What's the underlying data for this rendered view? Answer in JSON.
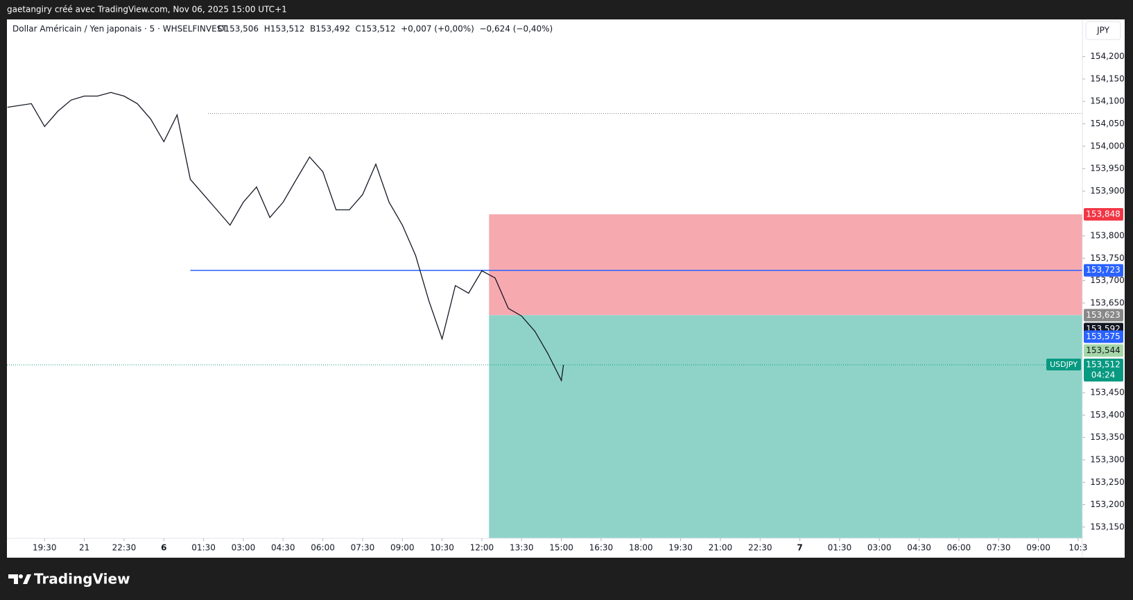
{
  "credit": "gaetangiry créé avec TradingView.com, Nov 06, 2025 15:00 UTC+1",
  "brand": "TradingView",
  "chart_data": {
    "type": "line",
    "title": "Dollar Américain / Yen japonais · 5 · WHSELFINVEST",
    "subtitle": "O153,506  H153,512  B153,492  C153,512  +0,007 (+0,00%)  −0,624 (−0,40%)",
    "currency": "JPY",
    "x": [
      18.1,
      19,
      19.5,
      20,
      20.5,
      21,
      21.5,
      22,
      22.5,
      23,
      23.5,
      24,
      24.5,
      25,
      25.5,
      26,
      26.5,
      27,
      27.5,
      28,
      28.5,
      29,
      29.5,
      30,
      30.5,
      31,
      31.5,
      32,
      32.5,
      33,
      33.5,
      34,
      34.5,
      35,
      35.5,
      36,
      36.5,
      37,
      37.5,
      38,
      38.5,
      39,
      39.08
    ],
    "series": [
      {
        "name": "USDJPY",
        "color": "#131722",
        "values": [
          154.087,
          154.095,
          154.044,
          154.078,
          154.103,
          154.112,
          154.112,
          154.12,
          154.112,
          154.095,
          154.061,
          154.01,
          154.07,
          153.926,
          153.892,
          153.858,
          153.824,
          153.875,
          153.909,
          153.841,
          153.875,
          153.926,
          153.976,
          153.943,
          153.858,
          153.858,
          153.892,
          153.96,
          153.875,
          153.824,
          153.756,
          153.655,
          153.57,
          153.689,
          153.672,
          153.722,
          153.706,
          153.638,
          153.621,
          153.587,
          153.536,
          153.477,
          153.512
        ]
      }
    ],
    "xlim": [
      18.08,
      58.66
    ],
    "xticks": [
      {
        "value": 19.5,
        "label": "19:30"
      },
      21,
      {
        "value": 22.5,
        "label": "22:30"
      },
      {
        "value": 24,
        "label": "6"
      },
      {
        "value": 25.5,
        "label": "01:30"
      },
      {
        "value": 27,
        "label": "03:00"
      },
      {
        "value": 28.5,
        "label": "04:30"
      },
      {
        "value": 30,
        "label": "06:00"
      },
      {
        "value": 31.5,
        "label": "07:30"
      },
      {
        "value": 33,
        "label": "09:00"
      },
      {
        "value": 34.5,
        "label": "10:30"
      },
      {
        "value": 36,
        "label": "12:00"
      },
      {
        "value": 37.5,
        "label": "13:30"
      },
      {
        "value": 39,
        "label": "15:00"
      },
      {
        "value": 40.5,
        "label": "16:30"
      },
      {
        "value": 42,
        "label": "18:00"
      },
      {
        "value": 43.5,
        "label": "19:30"
      },
      {
        "value": 45,
        "label": "21:00"
      },
      {
        "value": 46.5,
        "label": "22:30"
      },
      {
        "value": 48,
        "label": "7"
      },
      {
        "value": 49.5,
        "label": "01:30"
      },
      {
        "value": 51,
        "label": "03:00"
      },
      {
        "value": 52.5,
        "label": "04:30"
      },
      {
        "value": 54,
        "label": "06:00"
      },
      {
        "value": 55.5,
        "label": "07:30"
      },
      {
        "value": 57,
        "label": "09:00"
      },
      {
        "value": 58.5,
        "label": "10:3"
      }
    ],
    "ylim": [
      153.125,
      154.283
    ],
    "yticks": [
      {
        "value": 153.15,
        "label": "153,150"
      },
      {
        "value": 153.2,
        "label": "153,200"
      },
      {
        "value": 153.25,
        "label": "153,250"
      },
      {
        "value": 153.3,
        "label": "153,300"
      },
      {
        "value": 153.35,
        "label": "153,350"
      },
      {
        "value": 153.4,
        "label": "153,400"
      },
      {
        "value": 153.45,
        "label": "153,450"
      },
      {
        "value": 153.65,
        "label": "153,650"
      },
      {
        "value": 153.7,
        "label": "153,700"
      },
      {
        "value": 153.75,
        "label": "153,750"
      },
      {
        "value": 153.8,
        "label": "153,800"
      },
      {
        "value": 153.9,
        "label": "153,900"
      },
      {
        "value": 153.95,
        "label": "153,950"
      },
      {
        "value": 154,
        "label": "154,000"
      },
      {
        "value": 154.05,
        "label": "154,050"
      },
      {
        "value": 154.1,
        "label": "154,100"
      },
      {
        "value": 154.15,
        "label": "154,150"
      },
      {
        "value": 154.2,
        "label": "154,200"
      }
    ],
    "grid": false,
    "zones": [
      {
        "from": 153.848,
        "to": 153.623,
        "start": 36.27,
        "color": "#f7a9b0"
      },
      {
        "from": 153.623,
        "to": 153.1,
        "start": 36.27,
        "color": "#8fd3c8"
      }
    ],
    "reference_line": 154.073,
    "levels": [
      {
        "value": 153.848,
        "label": "153,848",
        "color": "#f23645"
      },
      {
        "value": 153.723,
        "label": "153,723",
        "color": "#2962ff",
        "start": 25.0
      },
      {
        "value": 153.623,
        "label": "153,623",
        "color": "#888888"
      },
      {
        "value": 153.592,
        "label": "153,592",
        "color": "#131722"
      },
      {
        "value": 153.575,
        "label": "153,575",
        "color": "#2962ff"
      },
      {
        "value": 153.544,
        "label": "153,544",
        "color": "#a5d6a7"
      },
      {
        "value": 153.512,
        "label": "153,512",
        "color": "#089981"
      }
    ],
    "countdown": "04:24"
  }
}
